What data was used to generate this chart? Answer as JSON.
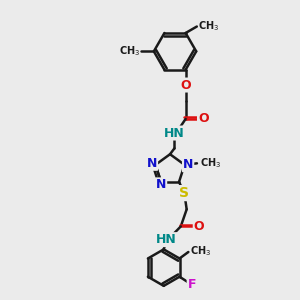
{
  "background_color": "#ebebeb",
  "bond_color": "#1a1a1a",
  "bond_width": 1.8,
  "font_size": 8,
  "figsize": [
    3.0,
    3.0
  ],
  "dpi": 100,
  "xlim": [
    0,
    10
  ],
  "ylim": [
    0,
    10
  ],
  "colors": {
    "N": "#1010cc",
    "O": "#dd1111",
    "S": "#ccbb00",
    "F": "#cc11cc",
    "NH": "#008888",
    "C": "#1a1a1a"
  }
}
